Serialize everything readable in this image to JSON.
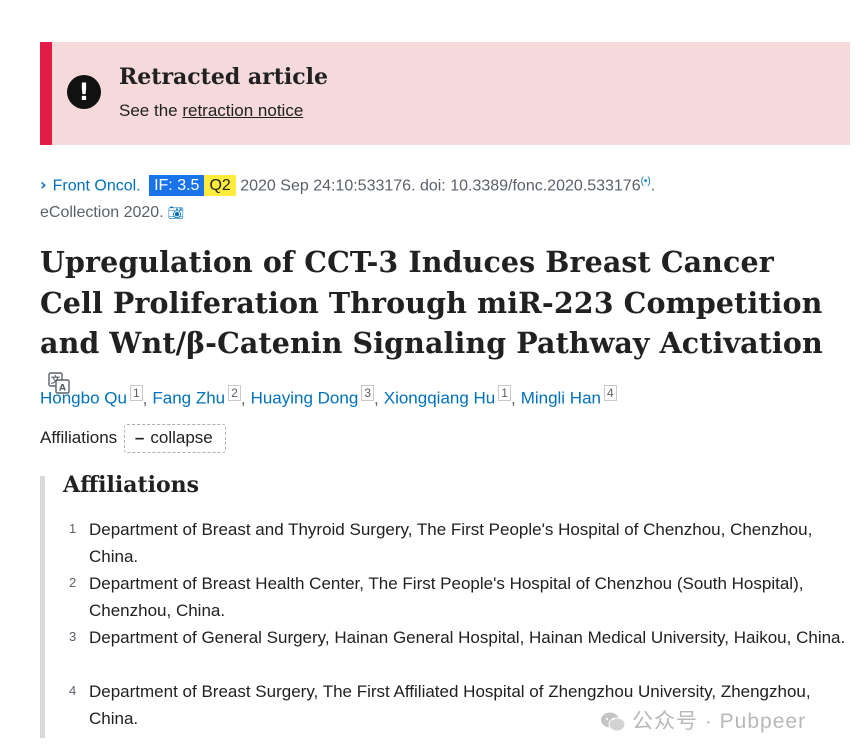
{
  "retraction": {
    "title": "Retracted article",
    "prefix": "See the ",
    "link": "retraction notice",
    "icon": "exclamation-icon",
    "accent_color": "#e31c47",
    "background_color": "#f6dadb"
  },
  "citation": {
    "journal": "Front Oncol.",
    "impact_factor": "IF: 3.5",
    "quartile": "Q2",
    "details": "2020 Sep 24:10:533176. doi: 10.3389/fonc.2020.533176",
    "details_end": ".",
    "ecollection": "eCollection 2020."
  },
  "article": {
    "title": "Upregulation of CCT-3 Induces Breast Cancer Cell Proliferation Through miR-223 Competition and Wnt/β-Catenin Signaling Pathway Activation"
  },
  "authors": [
    {
      "name": "Hongbo Qu",
      "affil": "1"
    },
    {
      "name": "Fang Zhu",
      "affil": "2"
    },
    {
      "name": "Huaying Dong",
      "affil": "3"
    },
    {
      "name": "Xiongqiang Hu",
      "affil": "1"
    },
    {
      "name": "Mingli Han",
      "affil": "4"
    }
  ],
  "affiliations_toggle": {
    "label": "Affiliations",
    "button": "collapse",
    "button_symbol": "–"
  },
  "affiliations": {
    "heading": "Affiliations",
    "items": [
      {
        "num": "1",
        "text": "Department of Breast and Thyroid Surgery, The First People's Hospital of Chenzhou, Chenzhou, China."
      },
      {
        "num": "2",
        "text": "Department of Breast Health Center, The First People's Hospital of Chenzhou (South Hospital), Chenzhou, China."
      },
      {
        "num": "3",
        "text": "Department of General Surgery, Hainan General Hospital, Hainan Medical University, Haikou, China."
      },
      {
        "num": "4",
        "text": "Department of Breast Surgery, The First Affiliated Hospital of Zhengzhou University, Zhengzhou, China."
      }
    ]
  },
  "watermark": {
    "text": "公众号 · Pubpeer"
  }
}
